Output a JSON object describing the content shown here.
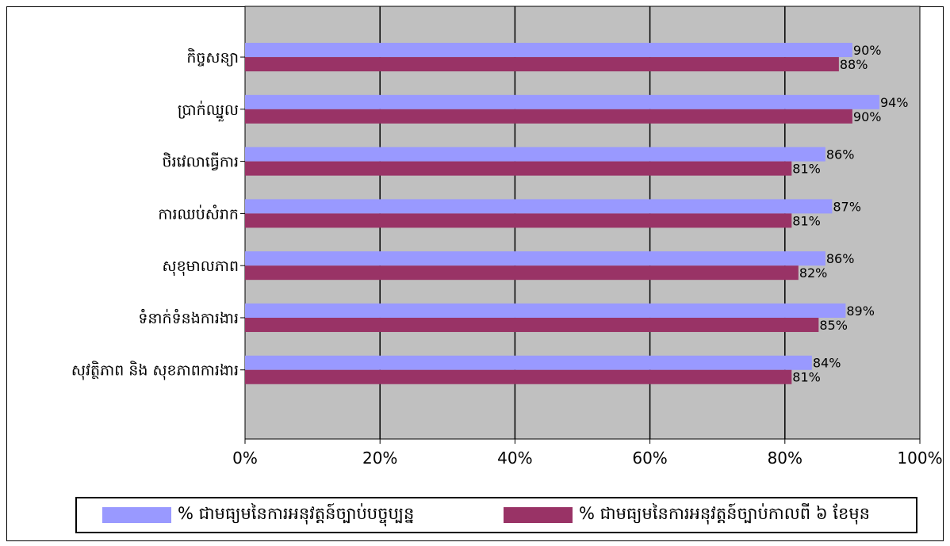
{
  "chart_data": {
    "type": "bar",
    "orientation": "horizontal",
    "categories": [
      "កិច្ចសន្យា",
      "ប្រាក់ឈ្នួល",
      "ថិរវេលាធ្វើការ",
      "ការឈប់សំរាក",
      "សុខុមាលភាព",
      "ទំនាក់ទំនងការងារ",
      "សុវត្ថិភាព និង សុខភាពការងារ"
    ],
    "series": [
      {
        "name": "% ជាមធ្យមនៃការអនុវត្តន៍ច្បាប់បច្ចុប្បន្ន",
        "values": [
          90,
          94,
          86,
          87,
          86,
          89,
          84
        ],
        "labels": [
          "90%",
          "94%",
          "86%",
          "87%",
          "86%",
          "89%",
          "84%"
        ],
        "color": "#9999ff"
      },
      {
        "name": "% ជាមធ្យមនៃការអនុវត្តន៍ច្បាប់កាលពី ៦ ខែមុន",
        "values": [
          88,
          90,
          81,
          81,
          82,
          85,
          81
        ],
        "labels": [
          "88%",
          "90%",
          "81%",
          "81%",
          "82%",
          "85%",
          "81%"
        ],
        "color": "#993366"
      }
    ],
    "xlim": [
      0,
      100
    ],
    "x_ticks": [
      "0%",
      "20%",
      "40%",
      "60%",
      "80%",
      "100%"
    ],
    "grid": true,
    "plot_background": "#c0c0c0",
    "legend_position": "bottom",
    "title": "",
    "xlabel": "",
    "ylabel": ""
  }
}
